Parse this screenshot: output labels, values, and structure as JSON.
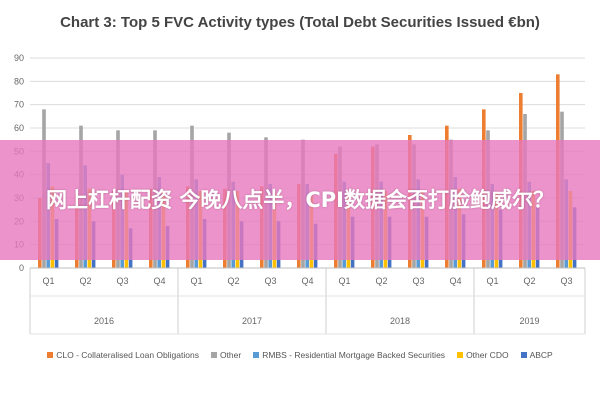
{
  "overlay": {
    "text": "网上杠杆配资 今晚八点半，CPI数据会否打脸鲍威尔？"
  },
  "chart_data": {
    "type": "bar",
    "title": "Chart 3: Top 5 FVC Activity types (Total Debt Securities Issued €bn)",
    "xlabel": "",
    "ylabel": "",
    "ylim": [
      0,
      90
    ],
    "y_ticks": [
      0,
      10,
      20,
      30,
      40,
      50,
      60,
      70,
      80,
      90
    ],
    "grid": true,
    "legend_position": "bottom",
    "categories": [
      "Q1",
      "Q2",
      "Q3",
      "Q4",
      "Q1",
      "Q2",
      "Q3",
      "Q4",
      "Q1",
      "Q2",
      "Q3",
      "Q4",
      "Q1",
      "Q2",
      "Q3"
    ],
    "year_groups": [
      {
        "label": "2016",
        "count": 4
      },
      {
        "label": "2017",
        "count": 4
      },
      {
        "label": "2018",
        "count": 4
      },
      {
        "label": "2019",
        "count": 3
      }
    ],
    "series": [
      {
        "name": "CLO - Collateralised Loan Obligations",
        "color": "#ed7d31",
        "values": [
          30,
          32,
          33,
          34,
          35,
          34,
          35,
          36,
          49,
          52,
          57,
          61,
          68,
          75,
          83
        ]
      },
      {
        "name": "Other",
        "color": "#a5a5a5",
        "values": [
          68,
          61,
          59,
          59,
          61,
          58,
          56,
          55,
          52,
          53,
          53,
          55,
          59,
          66,
          67
        ]
      },
      {
        "name": "RMBS - Residential Mortgage Backed Securities",
        "color": "#5b9bd5",
        "values": [
          45,
          44,
          40,
          39,
          38,
          37,
          36,
          36,
          37,
          37,
          38,
          39,
          36,
          37,
          38
        ]
      },
      {
        "name": "Other CDO",
        "color": "#ffc000",
        "values": [
          35,
          34,
          33,
          33,
          33,
          33,
          32,
          32,
          32,
          33,
          33,
          34,
          32,
          33,
          33
        ]
      },
      {
        "name": "ABCP",
        "color": "#4472c4",
        "values": [
          21,
          20,
          17,
          18,
          21,
          20,
          20,
          19,
          22,
          22,
          22,
          23,
          25,
          26,
          26
        ]
      }
    ]
  }
}
